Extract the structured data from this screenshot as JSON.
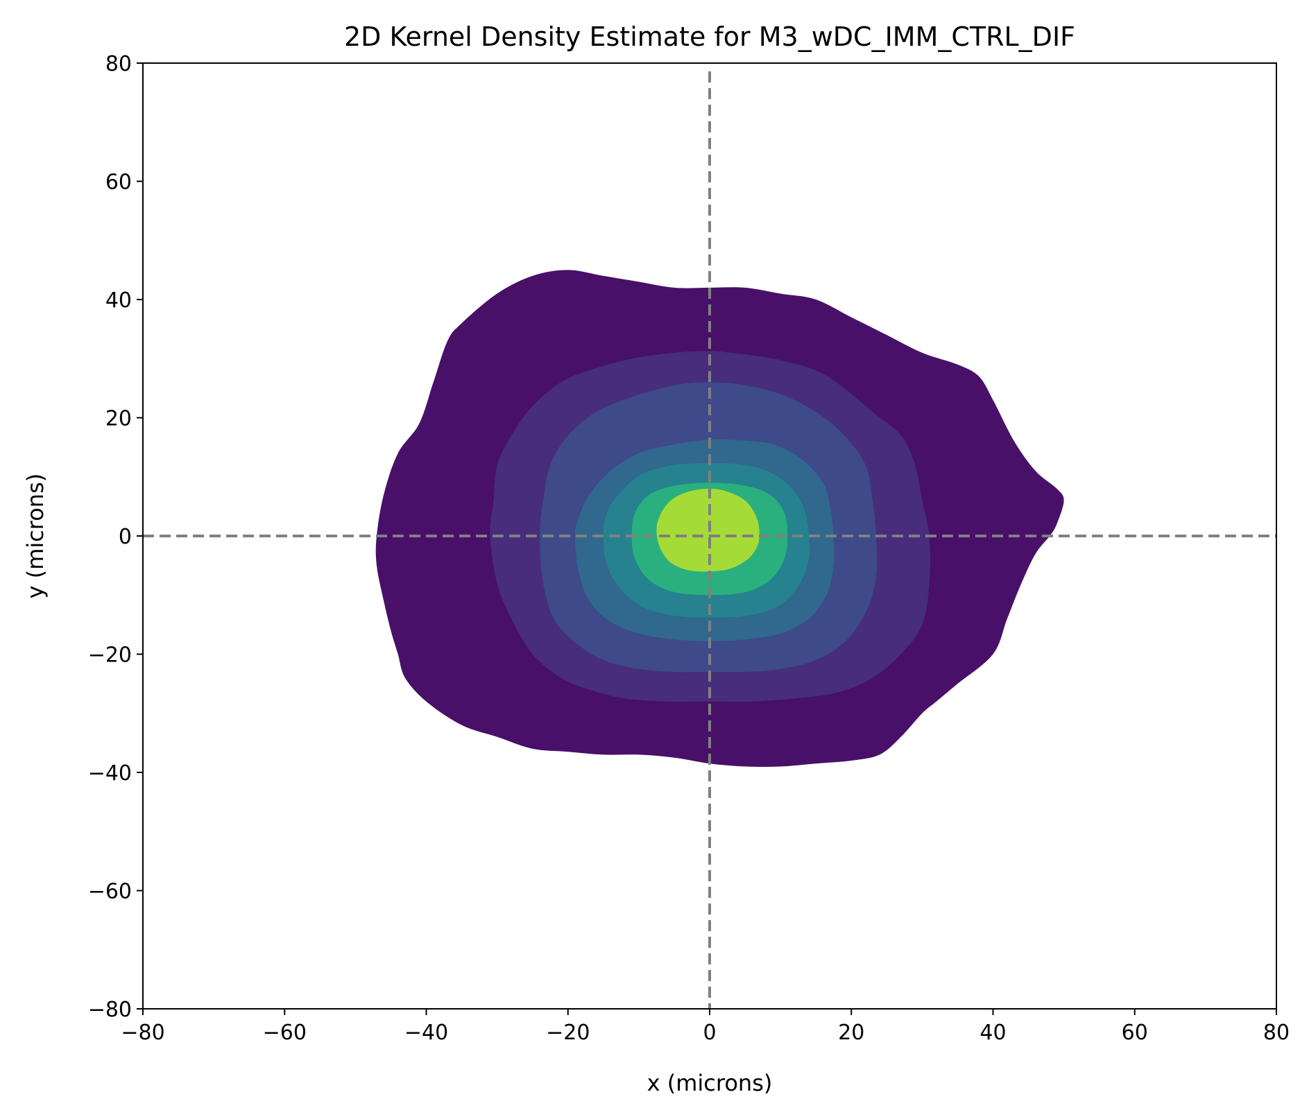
{
  "chart_data": {
    "type": "contour",
    "title": "2D Kernel Density Estimate for M3_wDC_IMM_CTRL_DIF",
    "xlabel": "x (microns)",
    "ylabel": "y (microns)",
    "xlim": [
      -80,
      80
    ],
    "ylim": [
      -80,
      80
    ],
    "xticks": [
      -80,
      -60,
      -40,
      -20,
      0,
      20,
      40,
      60,
      80
    ],
    "yticks": [
      -80,
      -60,
      -40,
      -20,
      0,
      20,
      40,
      60,
      80
    ],
    "xtick_labels": [
      "−80",
      "−60",
      "−40",
      "−20",
      "0",
      "20",
      "40",
      "60",
      "80"
    ],
    "ytick_labels": [
      "−80",
      "−60",
      "−40",
      "−20",
      "0",
      "20",
      "40",
      "60",
      "80"
    ],
    "grid": false,
    "legend": "none",
    "colormap": "viridis",
    "reference_lines": [
      {
        "orientation": "vertical",
        "x": 0,
        "style": "dashed",
        "color": "#808080"
      },
      {
        "orientation": "horizontal",
        "y": 0,
        "style": "dashed",
        "color": "#808080"
      }
    ],
    "contour_levels": [
      {
        "level": 1,
        "color": "#481068",
        "outline": [
          [
            -47,
            0
          ],
          [
            -46,
            7
          ],
          [
            -44,
            14
          ],
          [
            -41,
            19
          ],
          [
            -39,
            26
          ],
          [
            -37,
            33
          ],
          [
            -35,
            36
          ],
          [
            -30,
            41
          ],
          [
            -25,
            44
          ],
          [
            -20,
            45
          ],
          [
            -15,
            44
          ],
          [
            -10,
            43
          ],
          [
            -5,
            42
          ],
          [
            0,
            42
          ],
          [
            5,
            42
          ],
          [
            10,
            41
          ],
          [
            15,
            40
          ],
          [
            20,
            37
          ],
          [
            25,
            34
          ],
          [
            30,
            31
          ],
          [
            35,
            29
          ],
          [
            38,
            27
          ],
          [
            40,
            23
          ],
          [
            43,
            16
          ],
          [
            46,
            11
          ],
          [
            49,
            8
          ],
          [
            50,
            6
          ],
          [
            49,
            2
          ],
          [
            48,
            0
          ],
          [
            46,
            -3
          ],
          [
            44,
            -8
          ],
          [
            42,
            -14
          ],
          [
            40,
            -20
          ],
          [
            35,
            -25
          ],
          [
            32,
            -28
          ],
          [
            30,
            -30
          ],
          [
            27,
            -34
          ],
          [
            24,
            -37
          ],
          [
            20,
            -38
          ],
          [
            15,
            -38.5
          ],
          [
            10,
            -39
          ],
          [
            5,
            -39
          ],
          [
            0,
            -38.5
          ],
          [
            -5,
            -37.5
          ],
          [
            -10,
            -37
          ],
          [
            -15,
            -37
          ],
          [
            -20,
            -36.5
          ],
          [
            -25,
            -36
          ],
          [
            -30,
            -34
          ],
          [
            -35,
            -32
          ],
          [
            -40,
            -28
          ],
          [
            -43,
            -24
          ],
          [
            -44,
            -20
          ],
          [
            -45,
            -16
          ],
          [
            -46,
            -11
          ],
          [
            -47,
            -5
          ]
        ]
      },
      {
        "level": 2,
        "color": "#472d7b",
        "outline": [
          [
            -31,
            0
          ],
          [
            -30,
            -8
          ],
          [
            -28,
            -14
          ],
          [
            -25,
            -20
          ],
          [
            -21,
            -24
          ],
          [
            -17,
            -26
          ],
          [
            -12,
            -27.5
          ],
          [
            -6,
            -28
          ],
          [
            0,
            -28
          ],
          [
            6,
            -28
          ],
          [
            12,
            -27.5
          ],
          [
            18,
            -26.5
          ],
          [
            23,
            -24
          ],
          [
            27,
            -20
          ],
          [
            30,
            -15
          ],
          [
            31,
            -8
          ],
          [
            31,
            0
          ],
          [
            30,
            6
          ],
          [
            29,
            12
          ],
          [
            27,
            17
          ],
          [
            23,
            21
          ],
          [
            19,
            25
          ],
          [
            15,
            28
          ],
          [
            9,
            30
          ],
          [
            3,
            31
          ],
          [
            0,
            31.3
          ],
          [
            -5,
            31
          ],
          [
            -11,
            30
          ],
          [
            -17,
            28
          ],
          [
            -21,
            26
          ],
          [
            -25,
            22
          ],
          [
            -28,
            17
          ],
          [
            -30,
            12
          ],
          [
            -30.5,
            6
          ]
        ]
      },
      {
        "level": 3,
        "color": "#3e4a89",
        "outline": [
          [
            -24,
            0
          ],
          [
            -23.5,
            -8
          ],
          [
            -22,
            -14
          ],
          [
            -19,
            -18
          ],
          [
            -15,
            -21
          ],
          [
            -10,
            -22.5
          ],
          [
            -5,
            -23
          ],
          [
            0,
            -23
          ],
          [
            5,
            -23
          ],
          [
            10,
            -22.5
          ],
          [
            15,
            -21
          ],
          [
            19,
            -18
          ],
          [
            22,
            -13
          ],
          [
            23.5,
            -7
          ],
          [
            23.5,
            0
          ],
          [
            23,
            6
          ],
          [
            22,
            12
          ],
          [
            19,
            17
          ],
          [
            15,
            21
          ],
          [
            10,
            24
          ],
          [
            5,
            25.5
          ],
          [
            0,
            26
          ],
          [
            -5,
            25.5
          ],
          [
            -11,
            23.5
          ],
          [
            -16,
            21
          ],
          [
            -20,
            17
          ],
          [
            -22.5,
            12
          ],
          [
            -23.5,
            6
          ]
        ]
      },
      {
        "level": 4,
        "color": "#31688e",
        "outline": [
          [
            -19,
            0
          ],
          [
            -18.5,
            -6
          ],
          [
            -17,
            -11
          ],
          [
            -14,
            -14.5
          ],
          [
            -10,
            -16.5
          ],
          [
            -5,
            -17.5
          ],
          [
            0,
            -17.8
          ],
          [
            5,
            -17.5
          ],
          [
            10,
            -16.5
          ],
          [
            14,
            -14
          ],
          [
            16.5,
            -10
          ],
          [
            17.5,
            -5
          ],
          [
            17.5,
            0
          ],
          [
            17,
            5
          ],
          [
            16,
            9
          ],
          [
            13,
            13
          ],
          [
            9,
            15.5
          ],
          [
            4,
            16.2
          ],
          [
            0,
            16.3
          ],
          [
            -5,
            15.5
          ],
          [
            -10,
            14
          ],
          [
            -14,
            11
          ],
          [
            -17,
            7
          ],
          [
            -18.5,
            3
          ]
        ]
      },
      {
        "level": 5,
        "color": "#26828e",
        "outline": [
          [
            -15,
            0
          ],
          [
            -14.5,
            -5
          ],
          [
            -12.5,
            -9
          ],
          [
            -9.5,
            -12
          ],
          [
            -5,
            -13.5
          ],
          [
            0,
            -13.8
          ],
          [
            5,
            -13.5
          ],
          [
            9.5,
            -12
          ],
          [
            12.5,
            -8.5
          ],
          [
            14,
            -4
          ],
          [
            14,
            0
          ],
          [
            13.5,
            4
          ],
          [
            12,
            7.5
          ],
          [
            9,
            10.5
          ],
          [
            5,
            12
          ],
          [
            0,
            12.3
          ],
          [
            -5,
            12
          ],
          [
            -9.5,
            10.5
          ],
          [
            -12.5,
            7.5
          ],
          [
            -14.5,
            4
          ]
        ]
      },
      {
        "level": 6,
        "color": "#2ab07f",
        "outline": [
          [
            -11,
            0
          ],
          [
            -10.5,
            -4
          ],
          [
            -8.5,
            -7.5
          ],
          [
            -5,
            -9.5
          ],
          [
            0,
            -10
          ],
          [
            5,
            -9.5
          ],
          [
            8.5,
            -7.5
          ],
          [
            10.5,
            -4
          ],
          [
            11,
            0
          ],
          [
            10.5,
            4
          ],
          [
            8.5,
            7
          ],
          [
            5,
            8.5
          ],
          [
            0,
            9
          ],
          [
            -5,
            8.5
          ],
          [
            -8.5,
            7
          ],
          [
            -10.5,
            4
          ]
        ]
      },
      {
        "level": 7,
        "color": "#a5db36",
        "outline": [
          [
            -7.5,
            1
          ],
          [
            -7,
            -2
          ],
          [
            -5.5,
            -4.5
          ],
          [
            -3,
            -5.8
          ],
          [
            0,
            -6
          ],
          [
            3,
            -5.5
          ],
          [
            5.5,
            -3.8
          ],
          [
            6.8,
            -1.5
          ],
          [
            7,
            1
          ],
          [
            6.5,
            3.5
          ],
          [
            5,
            6
          ],
          [
            2.5,
            7.5
          ],
          [
            0,
            8
          ],
          [
            -3,
            7.5
          ],
          [
            -5.5,
            6
          ],
          [
            -7,
            3.5
          ]
        ]
      }
    ]
  }
}
